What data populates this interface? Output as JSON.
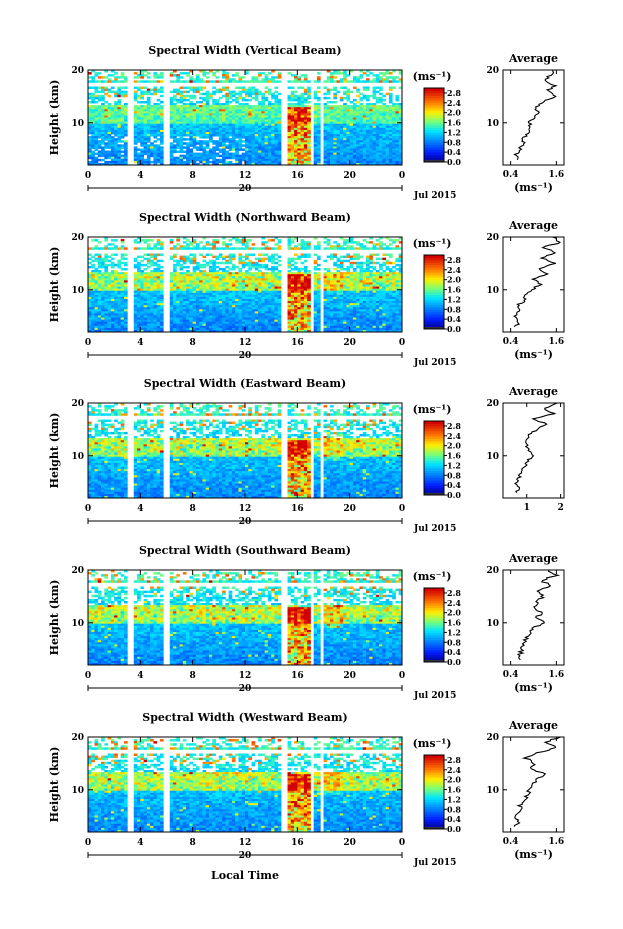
{
  "figure": {
    "xlabel": "Local Time",
    "date_label": "Jul 2015",
    "day_label": "20"
  },
  "chart_data": [
    {
      "type": "heatmap",
      "title": "Spectral Width (Vertical Beam)",
      "xlabel": "Local Time",
      "ylabel": "Height (km)",
      "xticks": [
        "0",
        "4",
        "8",
        "12",
        "16",
        "20",
        "0"
      ],
      "yticks": [
        "10",
        "20"
      ],
      "xlim": [
        0,
        24
      ],
      "ylim": [
        2,
        20
      ],
      "colorbar": {
        "unit": "(ms⁻¹)",
        "ticks": [
          "0.0",
          "0.4",
          "0.8",
          "1.2",
          "1.6",
          "2.0",
          "2.4",
          "2.8"
        ],
        "range": [
          0,
          3.0
        ]
      },
      "gaps_hours": [
        [
          3.1,
          3.5
        ],
        [
          5.8,
          6.2
        ],
        [
          14.8,
          15.2
        ],
        [
          16.9,
          17.2
        ],
        [
          17.7,
          18.0
        ]
      ],
      "average_profile": {
        "title": "Average",
        "xlabel": "(ms⁻¹)",
        "xticks": [
          "0.4",
          "1.6"
        ],
        "xlim": [
          0.2,
          1.8
        ],
        "yticks": [
          "10",
          "20"
        ],
        "height": [
          3,
          4,
          5,
          6,
          7,
          8,
          9,
          10,
          11,
          12,
          13,
          14,
          15,
          16,
          17,
          18,
          19,
          20
        ],
        "value": [
          0.6,
          0.55,
          0.65,
          0.75,
          0.7,
          0.85,
          0.95,
          0.9,
          1.0,
          1.15,
          1.05,
          1.25,
          1.6,
          1.35,
          1.55,
          1.3,
          1.45,
          1.5
        ]
      }
    },
    {
      "type": "heatmap",
      "title": "Spectral Width (Northward Beam)",
      "xlabel": "Local Time",
      "ylabel": "Height (km)",
      "xticks": [
        "0",
        "4",
        "8",
        "12",
        "16",
        "20",
        "0"
      ],
      "yticks": [
        "10",
        "20"
      ],
      "xlim": [
        0,
        24
      ],
      "ylim": [
        2,
        20
      ],
      "colorbar": {
        "unit": "(ms⁻¹)",
        "ticks": [
          "0.0",
          "0.4",
          "0.8",
          "1.2",
          "1.6",
          "2.0",
          "2.4",
          "2.8"
        ],
        "range": [
          0,
          3.0
        ]
      },
      "gaps_hours": [
        [
          3.1,
          3.5
        ],
        [
          5.8,
          6.2
        ],
        [
          14.8,
          15.2
        ],
        [
          16.9,
          17.2
        ],
        [
          17.7,
          18.0
        ]
      ],
      "average_profile": {
        "title": "Average",
        "xlabel": "(ms⁻¹)",
        "xticks": [
          "0.4",
          "1.6"
        ],
        "xlim": [
          0.2,
          1.8
        ],
        "yticks": [
          "10",
          "20"
        ],
        "height": [
          3,
          4,
          5,
          6,
          7,
          8,
          9,
          10,
          11,
          12,
          13,
          14,
          15,
          16,
          17,
          18,
          19,
          20
        ],
        "value": [
          0.55,
          0.6,
          0.5,
          0.65,
          0.6,
          0.75,
          0.8,
          0.95,
          1.2,
          1.0,
          1.4,
          1.15,
          1.55,
          1.2,
          1.6,
          1.25,
          1.7,
          1.5
        ]
      }
    },
    {
      "type": "heatmap",
      "title": "Spectral Width (Eastward Beam)",
      "xlabel": "Local Time",
      "ylabel": "Height (km)",
      "xticks": [
        "0",
        "4",
        "8",
        "12",
        "16",
        "20",
        "0"
      ],
      "yticks": [
        "10",
        "20"
      ],
      "xlim": [
        0,
        24
      ],
      "ylim": [
        2,
        20
      ],
      "colorbar": {
        "unit": "(ms⁻¹)",
        "ticks": [
          "0.0",
          "0.4",
          "0.8",
          "1.2",
          "1.6",
          "2.0",
          "2.4",
          "2.8"
        ],
        "range": [
          0,
          3.0
        ]
      },
      "gaps_hours": [
        [
          3.1,
          3.5
        ],
        [
          5.8,
          6.2
        ],
        [
          14.8,
          15.2
        ],
        [
          16.9,
          17.2
        ],
        [
          17.7,
          18.0
        ]
      ],
      "average_profile": {
        "title": "Average",
        "xlabel": "",
        "xticks": [
          "1",
          "2"
        ],
        "xlim": [
          0.3,
          2.1
        ],
        "yticks": [
          "10",
          "20"
        ],
        "height": [
          3,
          4,
          5,
          6,
          7,
          8,
          9,
          10,
          11,
          12,
          13,
          14,
          15,
          16,
          17,
          18,
          19,
          20
        ],
        "value": [
          0.7,
          0.75,
          0.7,
          0.8,
          0.85,
          0.95,
          1.05,
          1.15,
          1.1,
          1.0,
          0.95,
          1.1,
          1.3,
          1.6,
          1.2,
          1.8,
          1.5,
          1.9
        ]
      }
    },
    {
      "type": "heatmap",
      "title": "Spectral Width (Southward Beam)",
      "xlabel": "Local Time",
      "ylabel": "Height (km)",
      "xticks": [
        "0",
        "4",
        "8",
        "12",
        "16",
        "20",
        "0"
      ],
      "yticks": [
        "10",
        "20"
      ],
      "xlim": [
        0,
        24
      ],
      "ylim": [
        2,
        20
      ],
      "colorbar": {
        "unit": "(ms⁻¹)",
        "ticks": [
          "0.0",
          "0.4",
          "0.8",
          "1.2",
          "1.6",
          "2.0",
          "2.4",
          "2.8"
        ],
        "range": [
          0,
          3.0
        ]
      },
      "gaps_hours": [
        [
          3.1,
          3.5
        ],
        [
          5.8,
          6.2
        ],
        [
          14.8,
          15.2
        ],
        [
          16.9,
          17.2
        ],
        [
          17.7,
          18.0
        ]
      ],
      "average_profile": {
        "title": "Average",
        "xlabel": "(ms⁻¹)",
        "xticks": [
          "0.4",
          "1.6"
        ],
        "xlim": [
          0.2,
          1.8
        ],
        "yticks": [
          "10",
          "20"
        ],
        "height": [
          3,
          4,
          5,
          6,
          7,
          8,
          9,
          10,
          11,
          12,
          13,
          14,
          15,
          16,
          17,
          18,
          19,
          20
        ],
        "value": [
          0.6,
          0.65,
          0.7,
          0.75,
          0.8,
          0.9,
          1.0,
          1.3,
          1.1,
          1.2,
          1.0,
          1.1,
          1.25,
          1.05,
          1.5,
          1.2,
          1.6,
          1.4
        ]
      }
    },
    {
      "type": "heatmap",
      "title": "Spectral Width (Westward Beam)",
      "xlabel": "Local Time",
      "ylabel": "Height (km)",
      "xticks": [
        "0",
        "4",
        "8",
        "12",
        "16",
        "20",
        "0"
      ],
      "yticks": [
        "10",
        "20"
      ],
      "xlim": [
        0,
        24
      ],
      "ylim": [
        2,
        20
      ],
      "colorbar": {
        "unit": "(ms⁻¹)",
        "ticks": [
          "0.0",
          "0.4",
          "0.8",
          "1.2",
          "1.6",
          "2.0",
          "2.4",
          "2.8"
        ],
        "range": [
          0,
          3.0
        ]
      },
      "gaps_hours": [
        [
          3.1,
          3.5
        ],
        [
          5.8,
          6.2
        ],
        [
          14.8,
          15.2
        ],
        [
          16.9,
          17.2
        ],
        [
          17.7,
          18.0
        ]
      ],
      "average_profile": {
        "title": "Average",
        "xlabel": "(ms⁻¹)",
        "xticks": [
          "0.4",
          "1.6"
        ],
        "xlim": [
          0.2,
          1.8
        ],
        "yticks": [
          "10",
          "20"
        ],
        "height": [
          3,
          4,
          5,
          6,
          7,
          8,
          9,
          10,
          11,
          12,
          13,
          14,
          15,
          16,
          17,
          18,
          19,
          20
        ],
        "value": [
          0.55,
          0.6,
          0.55,
          0.7,
          0.65,
          0.75,
          0.85,
          0.9,
          1.0,
          1.1,
          1.3,
          0.95,
          1.0,
          0.8,
          1.1,
          1.6,
          1.3,
          1.7
        ]
      }
    }
  ]
}
